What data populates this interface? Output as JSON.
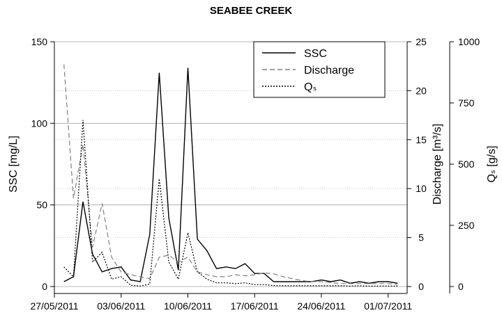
{
  "chart_data": {
    "type": "line",
    "title": "SEABEE CREEK",
    "x": [
      "28/05/2011",
      "29/05/2011",
      "30/05/2011",
      "31/05/2011",
      "01/06/2011",
      "02/06/2011",
      "03/06/2011",
      "04/06/2011",
      "05/06/2011",
      "06/06/2011",
      "07/06/2011",
      "08/06/2011",
      "09/06/2011",
      "10/06/2011",
      "11/06/2011",
      "12/06/2011",
      "13/06/2011",
      "14/06/2011",
      "15/06/2011",
      "16/06/2011",
      "17/06/2011",
      "18/06/2011",
      "19/06/2011",
      "20/06/2011",
      "21/06/2011",
      "22/06/2011",
      "23/06/2011",
      "24/06/2011",
      "25/06/2011",
      "26/06/2011",
      "27/06/2011",
      "28/06/2011",
      "29/06/2011",
      "30/06/2011",
      "01/07/2011",
      "02/07/2011"
    ],
    "xlim": [
      "27/05/2011",
      "03/07/2011"
    ],
    "xticks": [
      "27/05/2011",
      "03/06/2011",
      "10/06/2011",
      "17/06/2011",
      "24/06/2011",
      "01/07/2011"
    ],
    "ylabel": "SSC [mg/L]",
    "ylim": [
      0,
      150
    ],
    "yticks": [
      0,
      50,
      100,
      150
    ],
    "y2label": "Discharge [m³/s]",
    "y2lim": [
      0,
      25
    ],
    "y2ticks": [
      0,
      5,
      10,
      15,
      20,
      25
    ],
    "y3label": "Qₛ [g/s]",
    "y3lim": [
      0,
      1000
    ],
    "y3ticks": [
      0,
      250,
      500,
      750,
      1000
    ],
    "grid": true,
    "legend": "top-right",
    "series": [
      {
        "name": "SSC",
        "color": "#000000",
        "style": "solid",
        "axis": "y",
        "values": [
          3,
          6,
          52,
          20,
          9,
          11,
          12,
          4,
          3,
          32,
          131,
          42,
          10,
          134,
          29,
          22,
          11,
          12,
          11,
          14,
          8,
          8,
          3,
          3,
          3,
          3,
          3,
          4,
          3,
          4,
          2,
          3,
          2,
          3,
          3,
          2
        ]
      },
      {
        "name": "Discharge",
        "color": "#808080",
        "style": "dashed",
        "axis": "y2",
        "values": [
          22.7,
          9,
          14.5,
          4,
          8.5,
          3,
          1.5,
          1.2,
          1,
          0.8,
          3,
          3.2,
          2.5,
          3,
          1.5,
          1.2,
          1,
          1,
          1.2,
          1.1,
          1.2,
          1.4,
          1.3,
          1,
          0.8,
          0.6,
          0.5,
          0.5,
          0.4,
          0.3,
          0.3,
          0.3,
          0.3,
          0.3,
          0.3,
          0.2
        ]
      },
      {
        "name": "Qₛ",
        "color": "#000000",
        "style": "dotted",
        "axis": "y3",
        "values": [
          80,
          40,
          680,
          100,
          140,
          30,
          40,
          5,
          2,
          10,
          440,
          100,
          30,
          220,
          60,
          30,
          15,
          15,
          12,
          15,
          8,
          8,
          4,
          3,
          3,
          3,
          3,
          3,
          3,
          3,
          2,
          3,
          2,
          2,
          2,
          2
        ]
      }
    ]
  }
}
